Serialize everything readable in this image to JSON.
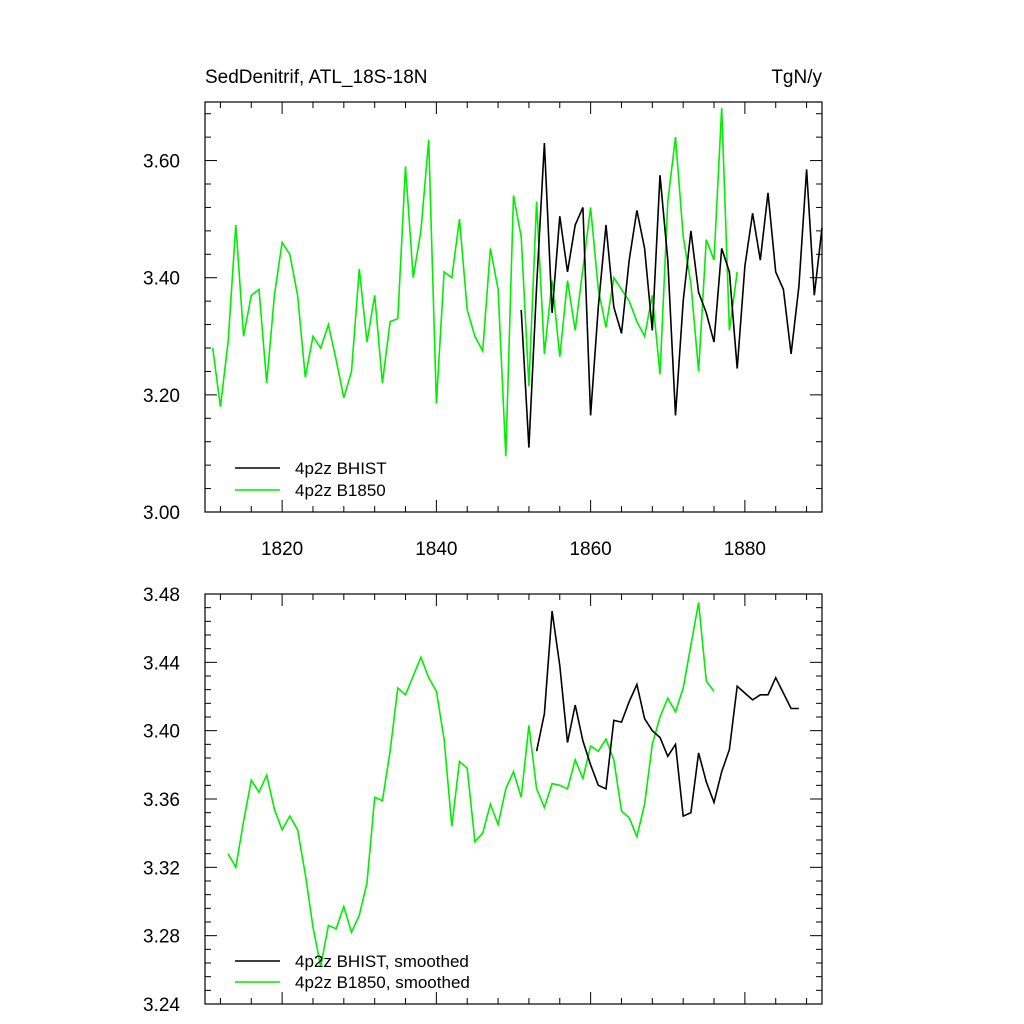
{
  "colors": {
    "bhist": "#000000",
    "b1850": "#00ee00"
  },
  "chart_data": [
    {
      "type": "line",
      "title": "SedDenitrif, ATL_18S-18N",
      "units": "TgN/y",
      "xlabel": "",
      "ylabel": "",
      "xlim": [
        1810,
        1890
      ],
      "ylim": [
        3.0,
        3.7
      ],
      "xticks": [
        1820,
        1840,
        1860,
        1880
      ],
      "xtick_labels": [
        "1820",
        "1840",
        "1860",
        "1880"
      ],
      "yticks": [
        3.0,
        3.2,
        3.4,
        3.6
      ],
      "ytick_labels": [
        "3.00",
        "3.20",
        "3.40",
        "3.60"
      ],
      "legend_position": "bottom-left",
      "series": [
        {
          "name": "4p2z BHIST",
          "color": "#000000",
          "x": [
            1851,
            1852,
            1853,
            1854,
            1855,
            1856,
            1857,
            1858,
            1859,
            1860,
            1861,
            1862,
            1863,
            1864,
            1865,
            1866,
            1867,
            1868,
            1869,
            1870,
            1871,
            1872,
            1873,
            1874,
            1875,
            1876,
            1877,
            1878,
            1879,
            1880,
            1881,
            1882,
            1883,
            1884,
            1885,
            1886,
            1887,
            1888,
            1889,
            1890
          ],
          "y": [
            3.345,
            3.11,
            3.385,
            3.63,
            3.34,
            3.505,
            3.41,
            3.49,
            3.52,
            3.165,
            3.35,
            3.49,
            3.35,
            3.305,
            3.43,
            3.515,
            3.45,
            3.31,
            3.575,
            3.43,
            3.165,
            3.36,
            3.48,
            3.375,
            3.34,
            3.29,
            3.45,
            3.41,
            3.245,
            3.42,
            3.51,
            3.43,
            3.545,
            3.41,
            3.38,
            3.27,
            3.385,
            3.585,
            3.37,
            3.485
          ]
        },
        {
          "name": "4p2z B1850",
          "color": "#00ee00",
          "x": [
            1811,
            1812,
            1813,
            1814,
            1815,
            1816,
            1817,
            1818,
            1819,
            1820,
            1821,
            1822,
            1823,
            1824,
            1825,
            1826,
            1827,
            1828,
            1829,
            1830,
            1831,
            1832,
            1833,
            1834,
            1835,
            1836,
            1837,
            1838,
            1839,
            1840,
            1841,
            1842,
            1843,
            1844,
            1845,
            1846,
            1847,
            1848,
            1849,
            1850,
            1851,
            1852,
            1853,
            1854,
            1855,
            1856,
            1857,
            1858,
            1859,
            1860,
            1861,
            1862,
            1863,
            1864,
            1865,
            1866,
            1867,
            1868,
            1869,
            1870,
            1871,
            1872,
            1873,
            1874,
            1875,
            1876,
            1877,
            1878,
            1879
          ],
          "y": [
            3.28,
            3.18,
            3.29,
            3.49,
            3.3,
            3.37,
            3.38,
            3.22,
            3.37,
            3.46,
            3.44,
            3.37,
            3.23,
            3.3,
            3.28,
            3.32,
            3.26,
            3.195,
            3.24,
            3.415,
            3.29,
            3.37,
            3.22,
            3.325,
            3.33,
            3.59,
            3.4,
            3.48,
            3.635,
            3.185,
            3.41,
            3.4,
            3.5,
            3.345,
            3.3,
            3.275,
            3.45,
            3.38,
            3.095,
            3.54,
            3.47,
            3.215,
            3.53,
            3.27,
            3.395,
            3.265,
            3.395,
            3.31,
            3.415,
            3.52,
            3.38,
            3.315,
            3.4,
            3.38,
            3.36,
            3.325,
            3.3,
            3.37,
            3.235,
            3.53,
            3.64,
            3.47,
            3.39,
            3.24,
            3.465,
            3.43,
            3.69,
            3.31,
            3.41
          ]
        }
      ]
    },
    {
      "type": "line",
      "title": "",
      "xlabel": "",
      "ylabel": "",
      "xlim": [
        1810,
        1890
      ],
      "ylim": [
        3.24,
        3.48
      ],
      "xticks": [
        1820,
        1840,
        1860,
        1880
      ],
      "yticks": [
        3.24,
        3.28,
        3.32,
        3.36,
        3.4,
        3.44,
        3.48
      ],
      "ytick_labels": [
        "3.24",
        "3.28",
        "3.32",
        "3.36",
        "3.40",
        "3.44",
        "3.48"
      ],
      "legend_position": "bottom-left",
      "series": [
        {
          "name": "4p2z BHIST, smoothed",
          "color": "#000000",
          "x": [
            1853,
            1854,
            1855,
            1856,
            1857,
            1858,
            1859,
            1860,
            1861,
            1862,
            1863,
            1864,
            1865,
            1866,
            1867,
            1868,
            1869,
            1870,
            1871,
            1872,
            1873,
            1874,
            1875,
            1876,
            1877,
            1878,
            1879,
            1880,
            1881,
            1882,
            1883,
            1884,
            1885,
            1886,
            1887
          ],
          "y": [
            3.388,
            3.41,
            3.47,
            3.438,
            3.393,
            3.415,
            3.394,
            3.38,
            3.368,
            3.366,
            3.406,
            3.405,
            3.417,
            3.427,
            3.407,
            3.4,
            3.396,
            3.385,
            3.392,
            3.35,
            3.352,
            3.387,
            3.37,
            3.358,
            3.376,
            3.389,
            3.426,
            3.422,
            3.418,
            3.421,
            3.421,
            3.431,
            3.422,
            3.413,
            3.413
          ]
        },
        {
          "name": "4p2z B1850, smoothed",
          "color": "#00ee00",
          "x": [
            1813,
            1814,
            1815,
            1816,
            1817,
            1818,
            1819,
            1820,
            1821,
            1822,
            1823,
            1824,
            1825,
            1826,
            1827,
            1828,
            1829,
            1830,
            1831,
            1832,
            1833,
            1834,
            1835,
            1836,
            1837,
            1838,
            1839,
            1840,
            1841,
            1842,
            1843,
            1844,
            1845,
            1846,
            1847,
            1848,
            1849,
            1850,
            1851,
            1852,
            1853,
            1854,
            1855,
            1856,
            1857,
            1858,
            1859,
            1860,
            1861,
            1862,
            1863,
            1864,
            1865,
            1866,
            1867,
            1868,
            1869,
            1870,
            1871,
            1872,
            1873,
            1874,
            1875,
            1876
          ],
          "y": [
            3.328,
            3.32,
            3.347,
            3.371,
            3.364,
            3.374,
            3.354,
            3.342,
            3.35,
            3.342,
            3.316,
            3.285,
            3.262,
            3.286,
            3.284,
            3.297,
            3.282,
            3.292,
            3.311,
            3.361,
            3.359,
            3.388,
            3.425,
            3.421,
            3.432,
            3.443,
            3.431,
            3.423,
            3.395,
            3.344,
            3.382,
            3.378,
            3.335,
            3.34,
            3.357,
            3.345,
            3.366,
            3.376,
            3.361,
            3.403,
            3.366,
            3.355,
            3.369,
            3.368,
            3.366,
            3.383,
            3.372,
            3.391,
            3.388,
            3.395,
            3.383,
            3.353,
            3.349,
            3.338,
            3.357,
            3.392,
            3.408,
            3.419,
            3.411,
            3.425,
            3.45,
            3.475,
            3.429,
            3.423
          ]
        }
      ]
    }
  ]
}
